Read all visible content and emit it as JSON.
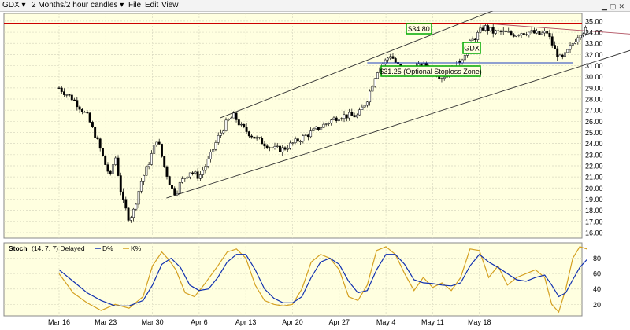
{
  "toolbar": {
    "symbol": "GDX",
    "timeframe": "2 Months/2 hour candles",
    "file": "File",
    "edit": "Edit",
    "view": "View"
  },
  "colors": {
    "panel_bg": "#ffffe0",
    "resistance": "#cc0000",
    "stoploss": "#2040c0",
    "channel": "#333333",
    "k_line": "#d4a020",
    "d_line": "#1030b0",
    "label_border": "#00aa00"
  },
  "chart_data": [
    {
      "type": "candlestick",
      "title": "",
      "x_ticks": [
        "Mar 16",
        "Mar 23",
        "Mar 30",
        "Apr 6",
        "Apr 13",
        "Apr 20",
        "Apr 27",
        "May 4",
        "May 11",
        "May 18"
      ],
      "ylim": [
        15.5,
        35.7
      ],
      "y_ticks": [
        16.0,
        17.0,
        18.0,
        19.0,
        20.0,
        21.0,
        22.0,
        23.0,
        24.0,
        25.0,
        26.0,
        27.0,
        28.0,
        29.0,
        30.0,
        31.0,
        32.0,
        33.0,
        34.0,
        35.0
      ],
      "y_tick_labels": [
        "16.00",
        "17.00",
        "18.00",
        "19.00",
        "20.00",
        "21.00",
        "22.00",
        "23.00",
        "24.00",
        "25.00",
        "26.00",
        "27.00",
        "28.00",
        "29.00",
        "30.00",
        "31.00",
        "32.00",
        "33.00",
        "34.00",
        "35.00"
      ],
      "close_path": [
        [
          0,
          29.0
        ],
        [
          0.3,
          28.0
        ],
        [
          0.6,
          26.5
        ],
        [
          0.8,
          24.5
        ],
        [
          1.0,
          22.0
        ],
        [
          1.1,
          21.0
        ],
        [
          1.2,
          23.0
        ],
        [
          1.35,
          19.0
        ],
        [
          1.5,
          17.2
        ],
        [
          1.6,
          18.0
        ],
        [
          1.75,
          20.5
        ],
        [
          1.9,
          22.0
        ],
        [
          2.1,
          24.5
        ],
        [
          2.25,
          22.0
        ],
        [
          2.4,
          20.0
        ],
        [
          2.5,
          19.5
        ],
        [
          2.6,
          20.5
        ],
        [
          2.8,
          21.5
        ],
        [
          3.0,
          21.0
        ],
        [
          3.2,
          22.5
        ],
        [
          3.4,
          24.5
        ],
        [
          3.6,
          26.0
        ],
        [
          3.75,
          26.5
        ],
        [
          3.9,
          25.5
        ],
        [
          4.05,
          25.0
        ],
        [
          4.2,
          24.5
        ],
        [
          4.4,
          24.0
        ],
        [
          4.6,
          23.5
        ],
        [
          4.8,
          23.5
        ],
        [
          5.0,
          24.0
        ],
        [
          5.2,
          24.5
        ],
        [
          5.4,
          25.0
        ],
        [
          5.6,
          25.5
        ],
        [
          5.8,
          26.0
        ],
        [
          6.0,
          26.5
        ],
        [
          6.2,
          26.5
        ],
        [
          6.4,
          26.5
        ],
        [
          6.6,
          28.0
        ],
        [
          6.8,
          30.5
        ],
        [
          7.0,
          31.5
        ],
        [
          7.1,
          32.0
        ],
        [
          7.25,
          31.0
        ],
        [
          7.4,
          30.5
        ],
        [
          7.6,
          30.8
        ],
        [
          7.8,
          31.0
        ],
        [
          8.0,
          30.5
        ],
        [
          8.2,
          30.0
        ],
        [
          8.4,
          30.5
        ],
        [
          8.6,
          31.5
        ],
        [
          8.8,
          33.0
        ],
        [
          9.0,
          34.0
        ],
        [
          9.1,
          34.5
        ],
        [
          9.3,
          34.0
        ],
        [
          9.5,
          34.0
        ],
        [
          9.7,
          33.8
        ],
        [
          9.9,
          34.0
        ],
        [
          10.1,
          34.0
        ],
        [
          10.3,
          33.8
        ],
        [
          10.45,
          34.0
        ],
        [
          10.6,
          32.5
        ],
        [
          10.75,
          31.5
        ],
        [
          10.85,
          32.0
        ],
        [
          11.0,
          33.0
        ],
        [
          11.15,
          34.0
        ],
        [
          11.3,
          34.2
        ]
      ],
      "annotations": [
        {
          "text": "$34.80",
          "kind": "horizontal-line",
          "y": 34.8
        },
        {
          "text": "GDX",
          "kind": "symbol-label"
        },
        {
          "text": "$31.25 (Optional Stoploss Zone)",
          "kind": "horizontal-segment",
          "y": 31.25
        }
      ],
      "trend_lines": [
        {
          "name": "channel-upper",
          "from": [
            3.45,
            26.3
          ],
          "to": [
            9.45,
            36.2
          ]
        },
        {
          "name": "channel-lower",
          "from": [
            2.3,
            19.1
          ],
          "to": [
            14.5,
            35.4
          ]
        },
        {
          "name": "wedge-top",
          "from": [
            9.1,
            34.8
          ],
          "to": [
            13.0,
            33.6
          ]
        }
      ],
      "grid": true
    },
    {
      "type": "line",
      "title": "Stoch",
      "params": "(14, 7, 7) Delayed",
      "legend": [
        {
          "name": "D%",
          "color": "#1030b0"
        },
        {
          "name": "K%",
          "color": "#d4a020"
        }
      ],
      "ylim": [
        5,
        100
      ],
      "y_ticks": [
        20,
        40,
        60,
        80
      ],
      "series": [
        {
          "name": "K%",
          "points": [
            [
              0,
              60
            ],
            [
              0.3,
              35
            ],
            [
              0.6,
              22
            ],
            [
              0.9,
              12
            ],
            [
              1.2,
              20
            ],
            [
              1.5,
              15
            ],
            [
              1.8,
              30
            ],
            [
              2.0,
              70
            ],
            [
              2.2,
              88
            ],
            [
              2.35,
              78
            ],
            [
              2.5,
              65
            ],
            [
              2.7,
              35
            ],
            [
              2.9,
              30
            ],
            [
              3.1,
              45
            ],
            [
              3.4,
              70
            ],
            [
              3.6,
              88
            ],
            [
              3.8,
              92
            ],
            [
              4.0,
              80
            ],
            [
              4.2,
              45
            ],
            [
              4.4,
              25
            ],
            [
              4.6,
              20
            ],
            [
              4.8,
              18
            ],
            [
              5.0,
              20
            ],
            [
              5.2,
              40
            ],
            [
              5.4,
              75
            ],
            [
              5.6,
              85
            ],
            [
              5.8,
              80
            ],
            [
              6.0,
              65
            ],
            [
              6.2,
              30
            ],
            [
              6.4,
              25
            ],
            [
              6.6,
              45
            ],
            [
              6.8,
              90
            ],
            [
              7.0,
              95
            ],
            [
              7.2,
              85
            ],
            [
              7.4,
              60
            ],
            [
              7.6,
              38
            ],
            [
              7.8,
              55
            ],
            [
              8.0,
              42
            ],
            [
              8.2,
              48
            ],
            [
              8.4,
              38
            ],
            [
              8.6,
              55
            ],
            [
              8.8,
              92
            ],
            [
              9.0,
              90
            ],
            [
              9.2,
              55
            ],
            [
              9.4,
              70
            ],
            [
              9.6,
              45
            ],
            [
              9.8,
              55
            ],
            [
              10.0,
              60
            ],
            [
              10.2,
              65
            ],
            [
              10.4,
              55
            ],
            [
              10.55,
              20
            ],
            [
              10.7,
              10
            ],
            [
              10.85,
              40
            ],
            [
              11.0,
              80
            ],
            [
              11.15,
              95
            ],
            [
              11.3,
              92
            ]
          ]
        },
        {
          "name": "D%",
          "points": [
            [
              0,
              65
            ],
            [
              0.3,
              50
            ],
            [
              0.6,
              35
            ],
            [
              0.9,
              25
            ],
            [
              1.2,
              18
            ],
            [
              1.5,
              18
            ],
            [
              1.8,
              25
            ],
            [
              2.0,
              45
            ],
            [
              2.2,
              72
            ],
            [
              2.4,
              80
            ],
            [
              2.6,
              68
            ],
            [
              2.8,
              45
            ],
            [
              3.0,
              38
            ],
            [
              3.2,
              40
            ],
            [
              3.4,
              55
            ],
            [
              3.6,
              75
            ],
            [
              3.8,
              85
            ],
            [
              4.0,
              85
            ],
            [
              4.2,
              65
            ],
            [
              4.4,
              40
            ],
            [
              4.6,
              28
            ],
            [
              4.8,
              22
            ],
            [
              5.0,
              22
            ],
            [
              5.2,
              30
            ],
            [
              5.4,
              55
            ],
            [
              5.6,
              75
            ],
            [
              5.8,
              80
            ],
            [
              6.0,
              72
            ],
            [
              6.2,
              50
            ],
            [
              6.4,
              35
            ],
            [
              6.6,
              38
            ],
            [
              6.8,
              65
            ],
            [
              7.0,
              85
            ],
            [
              7.2,
              85
            ],
            [
              7.4,
              72
            ],
            [
              7.6,
              52
            ],
            [
              7.8,
              48
            ],
            [
              8.0,
              47
            ],
            [
              8.2,
              45
            ],
            [
              8.4,
              44
            ],
            [
              8.6,
              48
            ],
            [
              8.8,
              70
            ],
            [
              9.0,
              85
            ],
            [
              9.2,
              75
            ],
            [
              9.4,
              68
            ],
            [
              9.6,
              60
            ],
            [
              9.8,
              52
            ],
            [
              10.0,
              50
            ],
            [
              10.2,
              55
            ],
            [
              10.4,
              58
            ],
            [
              10.55,
              45
            ],
            [
              10.7,
              30
            ],
            [
              10.85,
              35
            ],
            [
              11.0,
              52
            ],
            [
              11.15,
              68
            ],
            [
              11.3,
              78
            ]
          ]
        }
      ]
    }
  ]
}
